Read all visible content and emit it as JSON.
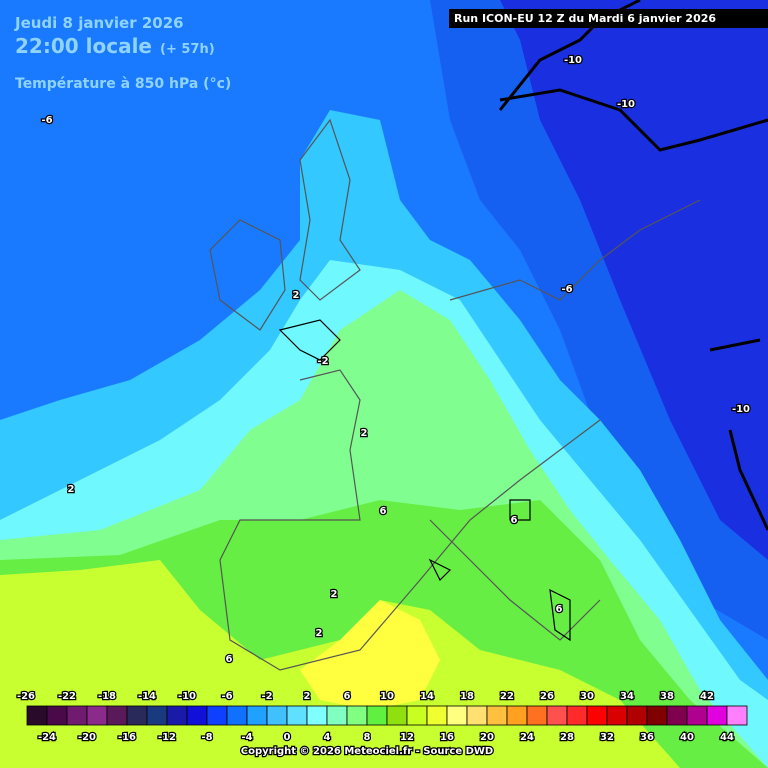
{
  "header": {
    "date": "Jeudi 8 janvier 2026",
    "time": "22:00 locale",
    "lead": "(+ 57h)",
    "field": "Température à 850 hPa (°c)",
    "run": "Run ICON-EU 12 Z du Mardi 6 janvier 2026"
  },
  "contour_labels": [
    -10,
    -10,
    -10,
    -6,
    -6,
    2,
    -2,
    2,
    6,
    6,
    2,
    2,
    2,
    6,
    6
  ],
  "colorbar": {
    "ticks": [
      -26,
      -24,
      -22,
      -20,
      -18,
      -16,
      -14,
      -12,
      -10,
      -8,
      -6,
      -4,
      -2,
      0,
      2,
      4,
      6,
      8,
      10,
      12,
      14,
      16,
      18,
      20,
      22,
      24,
      26,
      28,
      30,
      32,
      34,
      36,
      38,
      40,
      42,
      44
    ],
    "colors": [
      "#2a0a2a",
      "#4a0a4a",
      "#701a70",
      "#8a2a8a",
      "#5a1a5a",
      "#2a2a5a",
      "#1a3a80",
      "#1a1aa8",
      "#1010d8",
      "#1040ff",
      "#1070ff",
      "#20a0ff",
      "#40c0ff",
      "#60e0ff",
      "#80ffff",
      "#80ffc0",
      "#80ff80",
      "#60f040",
      "#90e010",
      "#c8ff20",
      "#f0ff30",
      "#ffff80",
      "#ffe070",
      "#ffc040",
      "#ffa020",
      "#ff7020",
      "#ff5050",
      "#ff2a2a",
      "#ff0000",
      "#d80000",
      "#b00000",
      "#800000",
      "#800050",
      "#b00090",
      "#e000e0",
      "#ff80ff"
    ]
  },
  "copyright": "Copyright © 2026 Meteociel.fr - Source DWD"
}
